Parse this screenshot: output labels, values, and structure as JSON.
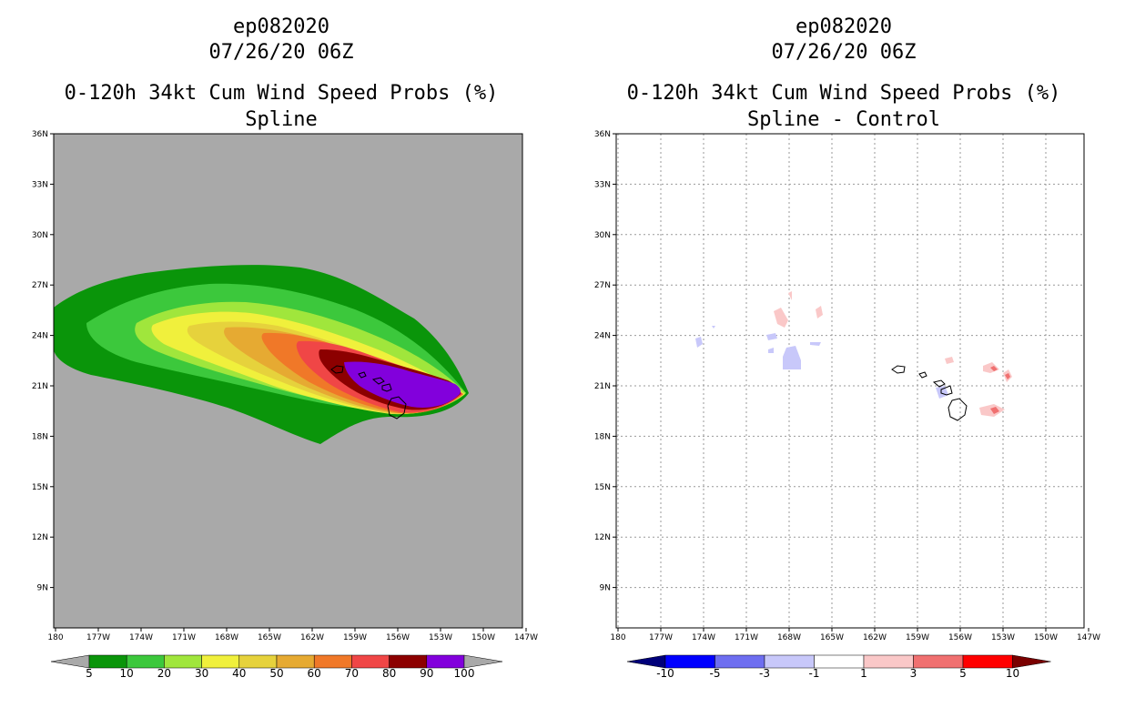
{
  "panels": [
    {
      "storm_id": "ep082020",
      "date_time": "07/26/20 06Z",
      "product": "0-120h 34kt Cum Wind Speed Probs (%)",
      "subtitle": "Spline",
      "background_color": "#a9a9a9",
      "colorbar": {
        "labels": [
          "5",
          "10",
          "20",
          "30",
          "40",
          "50",
          "60",
          "70",
          "80",
          "90",
          "100"
        ],
        "colors": [
          "#0a950a",
          "#3cc83c",
          "#a0e63c",
          "#f0f03c",
          "#e6d23c",
          "#e6aa32",
          "#f07828",
          "#f04646",
          "#8c0000",
          "#8200dc"
        ],
        "end_color": "#a9a9a9"
      }
    },
    {
      "storm_id": "ep082020",
      "date_time": "07/26/20 06Z",
      "product": "0-120h 34kt Cum Wind Speed Probs (%)",
      "subtitle": "Spline - Control",
      "background_color": "#ffffff",
      "colorbar": {
        "labels": [
          "-10",
          "-5",
          "-3",
          "-1",
          "1",
          "3",
          "5",
          "10"
        ],
        "colors": [
          "#0000ff",
          "#6e6ef0",
          "#c8c8fa",
          "#ffffff",
          "#fac8c8",
          "#f07070",
          "#ff0000"
        ],
        "low_end_color": "#00007a",
        "high_end_color": "#7a0000"
      }
    }
  ],
  "map": {
    "lat_labels": [
      "36N",
      "33N",
      "30N",
      "27N",
      "24N",
      "21N",
      "18N",
      "15N",
      "12N",
      "9N"
    ],
    "lon_labels": [
      "180",
      "177W",
      "174W",
      "171W",
      "168W",
      "165W",
      "162W",
      "159W",
      "156W",
      "153W",
      "150W",
      "147W"
    ]
  }
}
